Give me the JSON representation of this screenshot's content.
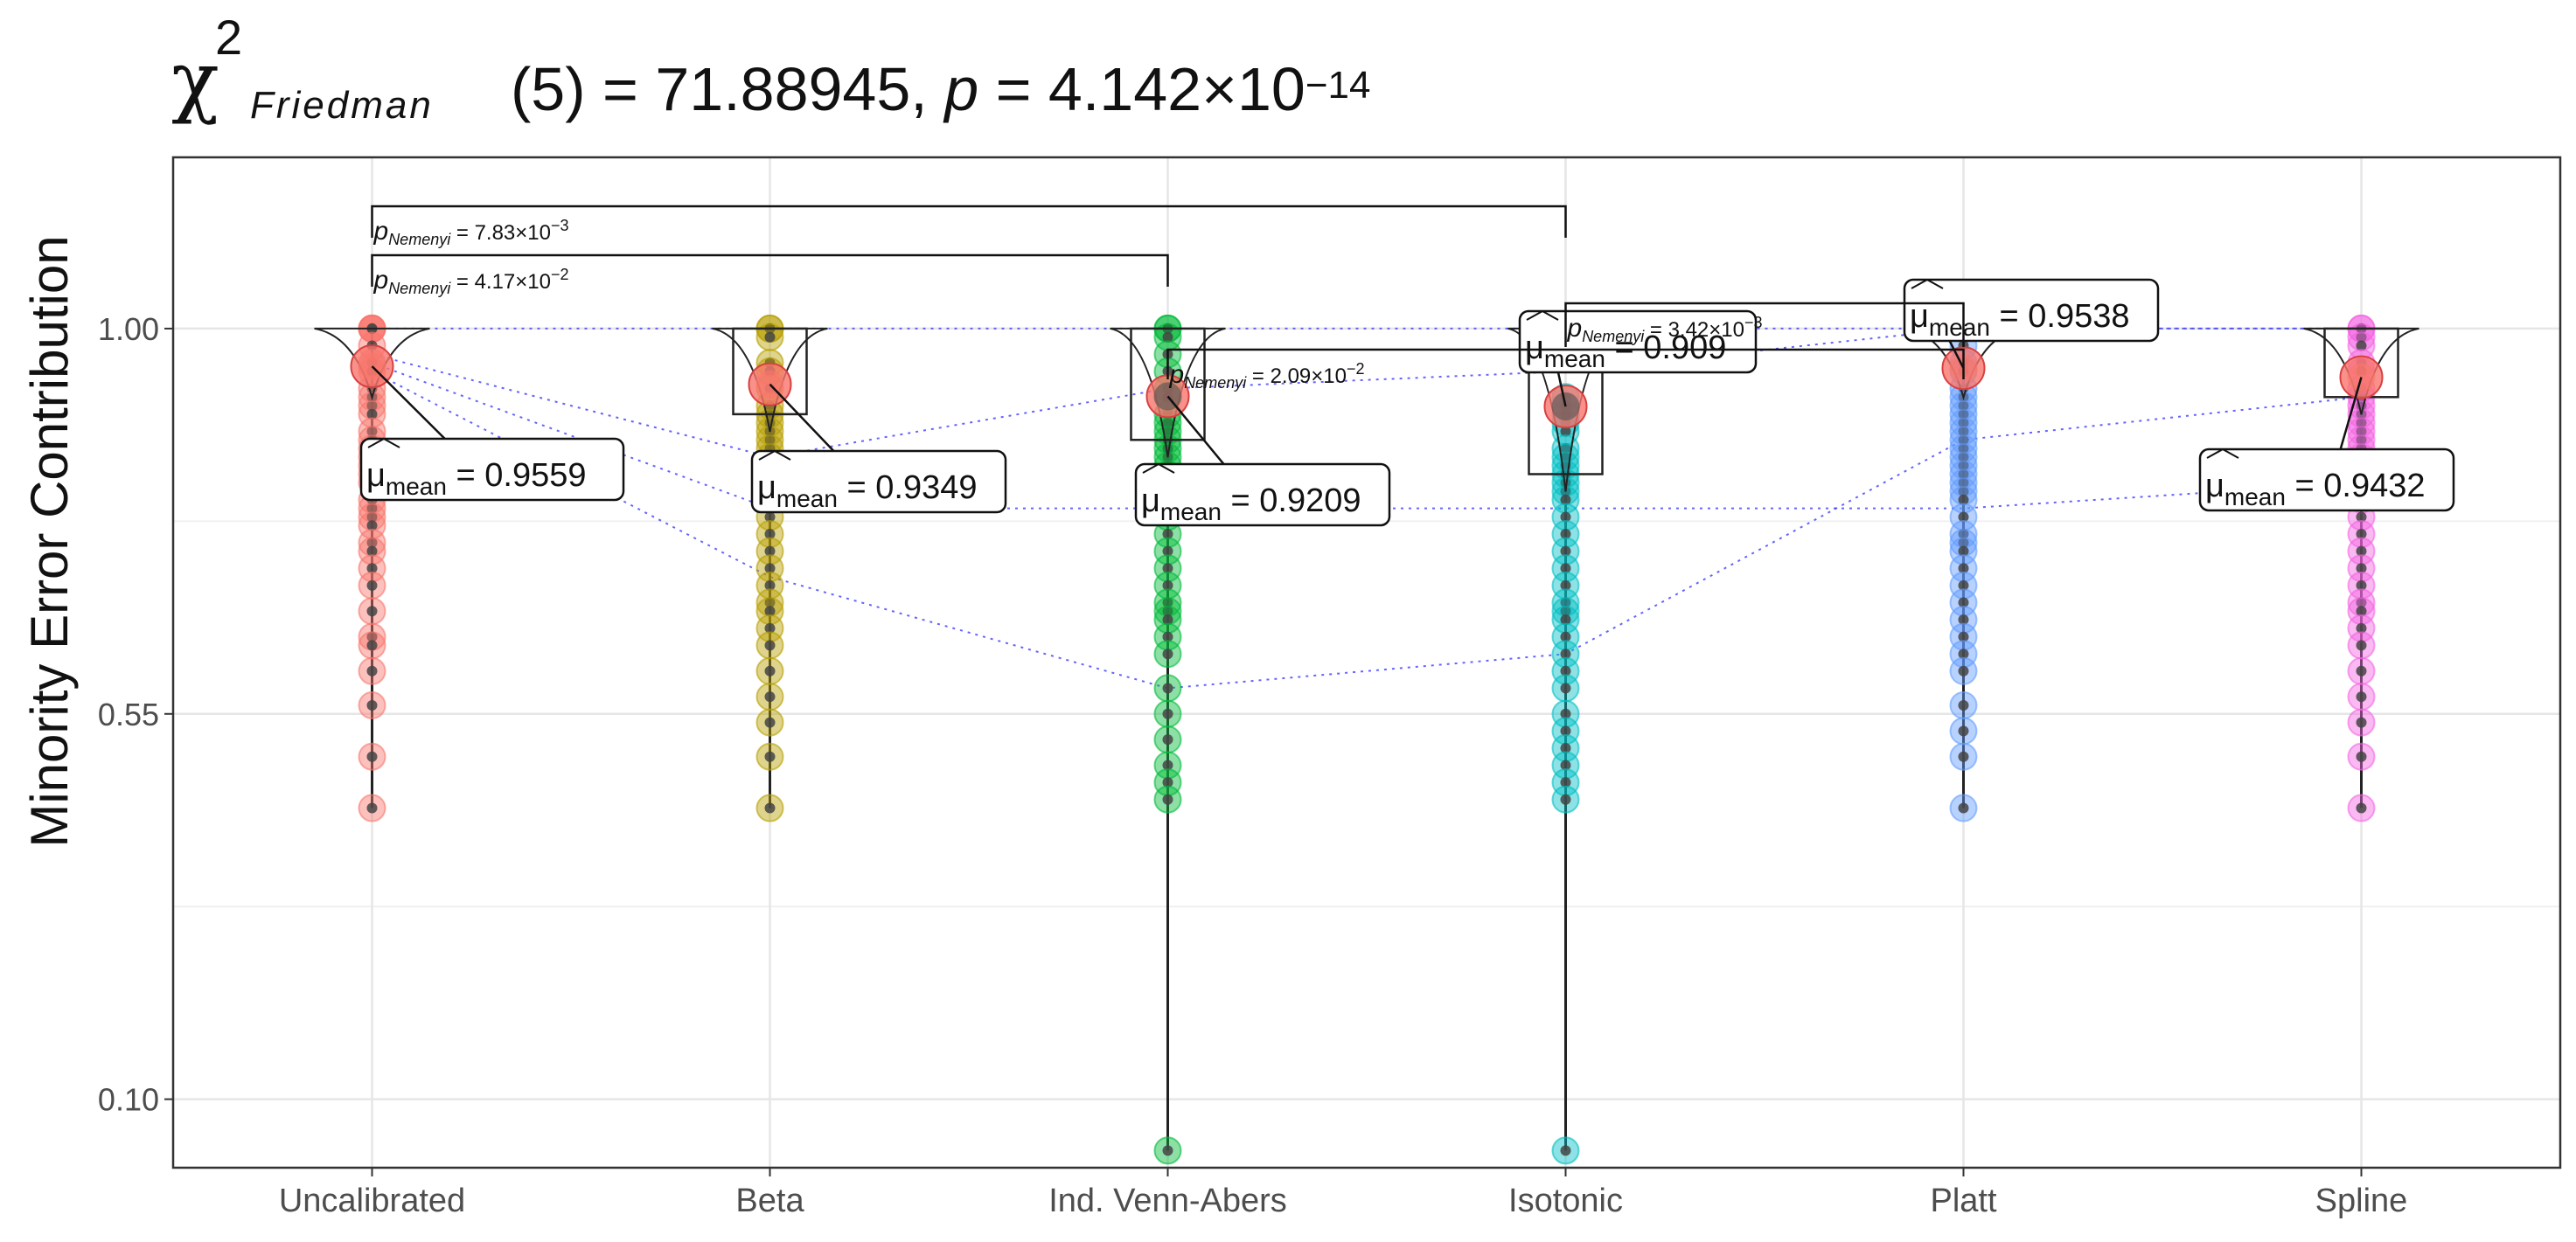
{
  "title": {
    "chi": "χ",
    "chi_superscript": "2",
    "chi_subscript": "Friedman",
    "statistic_text": "(5) = 71.88945, ",
    "p_symbol": "p",
    "p_text": " = 4.142×10",
    "p_exponent": "−14"
  },
  "chart_data": {
    "type": "violin-box-scatter",
    "ylabel": "Minority Error Contribution",
    "ylim": [
      0.02,
      1.2
    ],
    "y_ticks": [
      {
        "value": 1.0,
        "label": "1.00"
      },
      {
        "value": 0.55,
        "label": "0.55"
      },
      {
        "value": 0.1,
        "label": "0.10"
      }
    ],
    "categories": [
      "Uncalibrated",
      "Beta",
      "Ind. Venn-Abers",
      "Isotonic",
      "Platt",
      "Spline"
    ],
    "colors": [
      "#F8766D",
      "#B79F00",
      "#00BA38",
      "#00BFC4",
      "#619CFF",
      "#F564E3"
    ],
    "groups": [
      {
        "name": "Uncalibrated",
        "mean": 0.9559,
        "mean_label_symbol": "μ",
        "mean_label_sub": "mean",
        "mean_label_text": " = 0.9559",
        "box": {
          "q1": 1.0,
          "median": 1.0,
          "q3": 1.0
        },
        "min": 0.44,
        "points": [
          1.0,
          1.0,
          1.0,
          1.0,
          0.98,
          0.96,
          0.95,
          0.93,
          0.92,
          0.91,
          0.9,
          0.88,
          0.87,
          0.86,
          0.85,
          0.84,
          0.83,
          0.82,
          0.8,
          0.79,
          0.78,
          0.77,
          0.75,
          0.74,
          0.72,
          0.7,
          0.67,
          0.64,
          0.63,
          0.6,
          0.56,
          0.5,
          0.44
        ]
      },
      {
        "name": "Beta",
        "mean": 0.9349,
        "mean_label_symbol": "μ",
        "mean_label_sub": "mean",
        "mean_label_text": " = 0.9349",
        "box": {
          "q1": 0.9,
          "median": 1.0,
          "q3": 1.0
        },
        "min": 0.44,
        "points": [
          1.0,
          1.0,
          0.99,
          0.96,
          0.95,
          0.93,
          0.91,
          0.9,
          0.89,
          0.88,
          0.87,
          0.86,
          0.85,
          0.84,
          0.83,
          0.82,
          0.81,
          0.8,
          0.78,
          0.76,
          0.74,
          0.72,
          0.7,
          0.68,
          0.67,
          0.65,
          0.63,
          0.6,
          0.57,
          0.54,
          0.5,
          0.44
        ]
      },
      {
        "name": "Ind. Venn-Abers",
        "mean": 0.9209,
        "mean_label_symbol": "μ",
        "mean_label_sub": "mean",
        "mean_label_text": " = 0.9209",
        "box": {
          "q1": 0.87,
          "median": 0.96,
          "q3": 1.0
        },
        "min": 0.04,
        "points": [
          1.0,
          1.0,
          0.99,
          0.97,
          0.95,
          0.93,
          0.92,
          0.9,
          0.89,
          0.88,
          0.87,
          0.86,
          0.85,
          0.84,
          0.83,
          0.82,
          0.8,
          0.78,
          0.76,
          0.74,
          0.72,
          0.7,
          0.68,
          0.67,
          0.66,
          0.64,
          0.62,
          0.58,
          0.55,
          0.52,
          0.49,
          0.47,
          0.45,
          0.04
        ]
      },
      {
        "name": "Isotonic",
        "mean": 0.909,
        "mean_label_symbol": "μ",
        "mean_label_sub": "mean",
        "mean_label_text": " = 0.909",
        "box": {
          "q1": 0.83,
          "median": 0.92,
          "q3": 1.0
        },
        "min": 0.04,
        "points": [
          0.92,
          0.91,
          0.9,
          0.89,
          0.88,
          0.86,
          0.85,
          0.84,
          0.83,
          0.82,
          0.81,
          0.8,
          0.78,
          0.76,
          0.74,
          0.72,
          0.7,
          0.68,
          0.67,
          0.66,
          0.64,
          0.62,
          0.6,
          0.58,
          0.55,
          0.53,
          0.51,
          0.49,
          0.47,
          0.45,
          0.04
        ]
      },
      {
        "name": "Platt",
        "mean": 0.9538,
        "mean_label_symbol": "μ",
        "mean_label_sub": "mean",
        "mean_label_text": " = 0.9538",
        "box": {
          "q1": 1.0,
          "median": 1.0,
          "q3": 1.0
        },
        "min": 0.44,
        "points": [
          1.0,
          1.0,
          0.98,
          0.96,
          0.95,
          0.93,
          0.92,
          0.91,
          0.9,
          0.89,
          0.88,
          0.87,
          0.86,
          0.85,
          0.84,
          0.83,
          0.82,
          0.81,
          0.8,
          0.78,
          0.76,
          0.75,
          0.74,
          0.72,
          0.7,
          0.68,
          0.66,
          0.64,
          0.62,
          0.6,
          0.56,
          0.53,
          0.5,
          0.44
        ]
      },
      {
        "name": "Spline",
        "mean": 0.9432,
        "mean_label_symbol": "μ",
        "mean_label_sub": "mean",
        "mean_label_text": " = 0.9432",
        "box": {
          "q1": 0.92,
          "median": 1.0,
          "q3": 1.0
        },
        "min": 0.44,
        "points": [
          1.0,
          1.0,
          0.99,
          0.98,
          0.96,
          0.95,
          0.93,
          0.92,
          0.91,
          0.9,
          0.89,
          0.88,
          0.87,
          0.86,
          0.85,
          0.84,
          0.83,
          0.82,
          0.8,
          0.78,
          0.76,
          0.74,
          0.72,
          0.7,
          0.68,
          0.67,
          0.65,
          0.63,
          0.6,
          0.57,
          0.54,
          0.5,
          0.44
        ]
      }
    ],
    "pairwise": [
      {
        "from": "Uncalibrated",
        "to": "Isotonic",
        "p_prefix": "p",
        "p_sub": "Nemenyi",
        "p_text": " = 7.83×10",
        "p_exp": "−3",
        "level": 1
      },
      {
        "from": "Uncalibrated",
        "to": "Ind. Venn-Abers",
        "p_prefix": "p",
        "p_sub": "Nemenyi",
        "p_text": " = 4.17×10",
        "p_exp": "−2",
        "level": 2
      },
      {
        "from": "Isotonic",
        "to": "Platt",
        "p_prefix": "p",
        "p_sub": "Nemenyi",
        "p_text": " = 3.42×10",
        "p_exp": "−3",
        "level": 3
      },
      {
        "from": "Ind. Venn-Abers",
        "to": "Platt",
        "p_prefix": "p",
        "p_sub": "Nemenyi",
        "p_text": " = 2.09×10",
        "p_exp": "−2",
        "level": 4
      }
    ],
    "grid": true,
    "paired_lines": true
  }
}
